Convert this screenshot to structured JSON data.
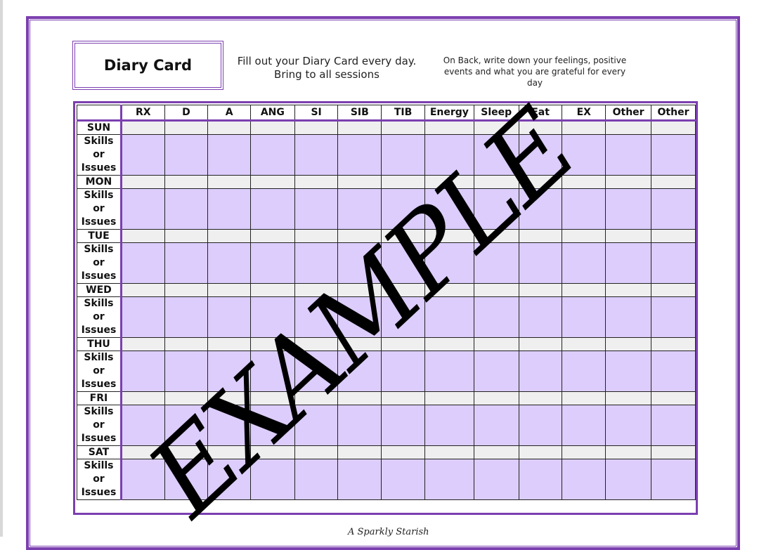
{
  "title": "Diary Card",
  "instructions": "Fill out your Diary Card every day.  Bring to all sessions",
  "back_note": "On Back, write down your feelings, positive events and what you are grateful for every day",
  "columns": [
    "RX",
    "D",
    "A",
    "ANG",
    "SI",
    "SIB",
    "TIB",
    "Energy",
    "Sleep",
    "Eat",
    "EX",
    "Other",
    "Other"
  ],
  "days": [
    "SUN",
    "MON",
    "TUE",
    "WED",
    "THU",
    "FRI",
    "SAT"
  ],
  "skills_label": [
    "Skills",
    "or",
    "Issues"
  ],
  "watermark": "EXAMPLE",
  "logo": "A Sparkly Starish",
  "colors": {
    "border": "#7b3fb0",
    "skills_fill": "#dccdfc",
    "day_fill": "#efefef"
  }
}
